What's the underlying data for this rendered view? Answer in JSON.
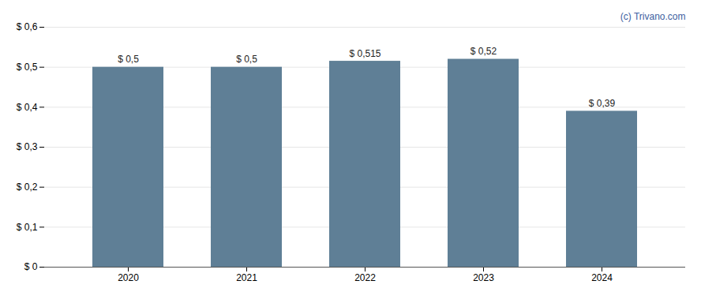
{
  "chart_data": {
    "type": "bar",
    "categories": [
      "2020",
      "2021",
      "2022",
      "2023",
      "2024"
    ],
    "values": [
      0.5,
      0.5,
      0.515,
      0.52,
      0.39
    ],
    "value_labels": [
      "$ 0,5",
      "$ 0,5",
      "$ 0,515",
      "$ 0,52",
      "$ 0,39"
    ],
    "color": "#5f7f96",
    "ylim": [
      0,
      0.6
    ],
    "yticks": [
      {
        "value": 0.0,
        "label": "$ 0"
      },
      {
        "value": 0.1,
        "label": "$ 0,1"
      },
      {
        "value": 0.2,
        "label": "$ 0,2"
      },
      {
        "value": 0.3,
        "label": "$ 0,3"
      },
      {
        "value": 0.4,
        "label": "$ 0,4"
      },
      {
        "value": 0.5,
        "label": "$ 0,5"
      },
      {
        "value": 0.6,
        "label": "$ 0,6"
      }
    ],
    "grid": true,
    "data_labels": true,
    "annotations": [
      {
        "text": "(c) Trivano.com",
        "color": "#4060a0"
      }
    ]
  }
}
